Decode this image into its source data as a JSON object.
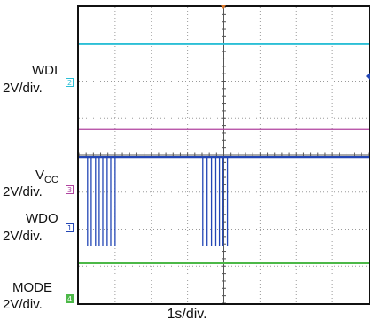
{
  "chart_data": {
    "type": "line",
    "x_divisions": 8,
    "y_divisions": 8,
    "xlabel": "1s/div.",
    "grid": true,
    "channel_labels": [
      {
        "name": "WDI",
        "scale": "2V/div."
      },
      {
        "name_base": "V",
        "name_sub": "CC",
        "scale": "2V/div."
      },
      {
        "name": "WDO",
        "scale": "2V/div."
      },
      {
        "name": "MODE",
        "scale": "2V/div."
      }
    ],
    "markers": [
      "2",
      "3",
      "1",
      "4"
    ],
    "traces": [
      {
        "id": "ch-cyan",
        "color": "#2bbfd6",
        "baseline_div": 7.0
      },
      {
        "id": "ch-magenta",
        "color": "#b0439f",
        "baseline_div": 4.7
      },
      {
        "id": "ch-blue",
        "color": "#2346b5",
        "baseline_div": 3.95,
        "pulse_depth_div": 2.4,
        "pulse_times_div": [
          0.24,
          0.34,
          0.46,
          0.56,
          0.66,
          0.78,
          0.88,
          1.0,
          3.42,
          3.54,
          3.66,
          3.78,
          3.88,
          3.98,
          4.1
        ]
      },
      {
        "id": "ch-green",
        "color": "#4cb848",
        "baseline_div": 1.08
      }
    ]
  }
}
